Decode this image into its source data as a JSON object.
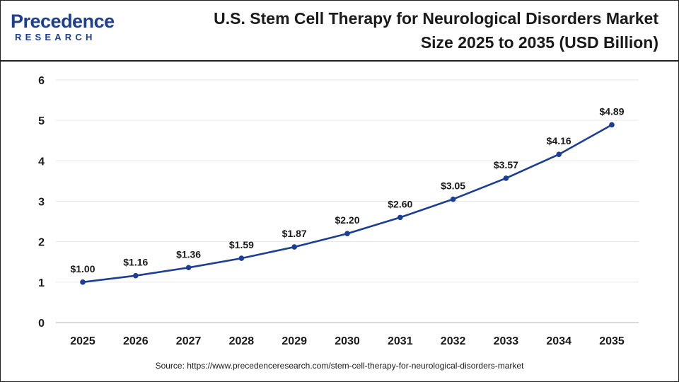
{
  "header": {
    "logo_main": "Precedence",
    "logo_sub": "RESEARCH",
    "title_line1": "U.S. Stem Cell Therapy for Neurological Disorders Market",
    "title_line2": "Size 2025 to 2035 (USD Billion)"
  },
  "source": "Source: https://www.precedenceresearch.com/stem-cell-therapy-for-neurological-disorders-market",
  "colors": {
    "line": "#1c3f94",
    "grid": "#e6e6e6",
    "axis": "#cccccc",
    "text": "#1a1a1a"
  },
  "icons": {
    "logo": "precedence-research-logo"
  },
  "chart_data": {
    "type": "line",
    "title": "U.S. Stem Cell Therapy for Neurological Disorders Market Size 2025 to 2035 (USD Billion)",
    "xlabel": "",
    "ylabel": "",
    "categories": [
      "2025",
      "2026",
      "2027",
      "2028",
      "2029",
      "2030",
      "2031",
      "2032",
      "2033",
      "2034",
      "2035"
    ],
    "series": [
      {
        "values": [
          1.0,
          1.16,
          1.36,
          1.59,
          1.87,
          2.2,
          2.6,
          3.05,
          3.57,
          4.16,
          4.89
        ]
      }
    ],
    "data_labels": [
      "$1.00",
      "$1.16",
      "$1.36",
      "$1.59",
      "$1.87",
      "$2.20",
      "$2.60",
      "$3.05",
      "$3.57",
      "$4.16",
      "$4.89"
    ],
    "ylim": [
      0,
      6
    ],
    "yticks": [
      "0",
      "1",
      "2",
      "3",
      "4",
      "5",
      "6"
    ],
    "grid": true,
    "legend": "none"
  }
}
